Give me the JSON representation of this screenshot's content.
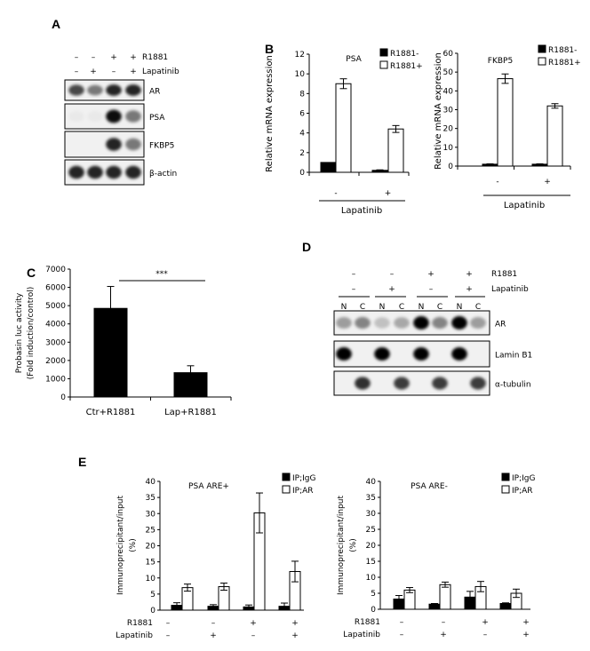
{
  "panels": {
    "a": "A",
    "b": "B",
    "c": "C",
    "d": "D",
    "e": "E"
  },
  "blot_a": {
    "treatments": [
      {
        "label": "R1881",
        "signs": [
          "–",
          "–",
          "+",
          "+"
        ]
      },
      {
        "label": "Lapatinib",
        "signs": [
          "–",
          "+",
          "–",
          "+"
        ]
      }
    ],
    "rows": [
      {
        "label": "AR",
        "band_intensity": [
          0.7,
          0.5,
          0.85,
          0.85
        ]
      },
      {
        "label": "PSA",
        "band_intensity": [
          0.03,
          0.03,
          0.95,
          0.5
        ]
      },
      {
        "label": "FKBP5",
        "band_intensity": [
          0,
          0,
          0.85,
          0.5
        ]
      },
      {
        "label": "β-actin",
        "band_intensity": [
          0.85,
          0.85,
          0.85,
          0.85
        ]
      }
    ]
  },
  "blot_d": {
    "treatments": [
      {
        "label": "R1881",
        "signs": [
          "–",
          "–",
          "+",
          "+"
        ]
      },
      {
        "label": "Lapatinib",
        "signs": [
          "–",
          "+",
          "–",
          "+"
        ]
      }
    ],
    "fractions": [
      "N",
      "C",
      "N",
      "C",
      "N",
      "C",
      "N",
      "C"
    ],
    "rows": [
      {
        "label": "AR",
        "band_intensity": [
          0.35,
          0.45,
          0.2,
          0.3,
          1,
          0.45,
          1,
          0.35
        ]
      },
      {
        "label": "Lamin B1",
        "band_intensity": [
          1,
          0,
          1,
          0,
          1,
          0,
          1,
          0
        ]
      },
      {
        "label": "α-tubulin",
        "band_intensity": [
          0,
          0.8,
          0,
          0.75,
          0,
          0.75,
          0,
          0.75
        ]
      }
    ]
  },
  "chart_data": [
    {
      "id": "b_psa",
      "type": "bar",
      "title": "PSA",
      "ylabel": "Relative mRNA expression",
      "xlabel": "Lapatinib",
      "categories": [
        "-",
        "+"
      ],
      "ylim": [
        0,
        12
      ],
      "yticks": [
        0,
        2,
        4,
        6,
        8,
        10,
        12
      ],
      "legend": "top-right",
      "series": [
        {
          "name": "R1881-",
          "color": "#000000",
          "values": [
            1.0,
            0.2
          ],
          "errors": [
            0,
            0.05
          ]
        },
        {
          "name": "R1881+",
          "color": "#ffffff",
          "values": [
            9.0,
            4.4
          ],
          "errors": [
            0.5,
            0.35
          ]
        }
      ]
    },
    {
      "id": "b_fkbp5",
      "type": "bar",
      "title": "FKBP5",
      "ylabel": "Relative mRNA expression",
      "xlabel": "Lapatinib",
      "categories": [
        "-",
        "+"
      ],
      "ylim": [
        0,
        60
      ],
      "yticks": [
        0,
        10,
        20,
        30,
        40,
        50,
        60
      ],
      "legend": "top-right",
      "series": [
        {
          "name": "R1881-",
          "color": "#000000",
          "values": [
            1.0,
            1.0
          ],
          "errors": [
            0.2,
            0.2
          ]
        },
        {
          "name": "R1881+",
          "color": "#ffffff",
          "values": [
            46.5,
            32.0
          ],
          "errors": [
            2.5,
            1.2
          ]
        }
      ]
    },
    {
      "id": "c_luc",
      "type": "bar",
      "ylabel": [
        "Probasin luc activity",
        "(Fold induction/control)"
      ],
      "categories": [
        "Ctr+R1881",
        "Lap+R1881"
      ],
      "ylim": [
        0,
        7000
      ],
      "yticks": [
        0,
        1000,
        2000,
        3000,
        4000,
        5000,
        6000,
        7000
      ],
      "series": [
        {
          "color": "#000000",
          "values": [
            4850,
            1330
          ],
          "errors": [
            1200,
            380
          ]
        }
      ],
      "annotation": "***"
    },
    {
      "id": "e_plus",
      "type": "bar",
      "title": "PSA ARE+",
      "ylabel": [
        "Immunoprecipitant/input",
        "(%)"
      ],
      "ylim": [
        0,
        40
      ],
      "yticks": [
        0,
        5,
        10,
        15,
        20,
        25,
        30,
        35,
        40
      ],
      "legend": "top-right",
      "conditions": [
        {
          "label": "R1881",
          "signs": [
            "–",
            "–",
            "+",
            "+"
          ]
        },
        {
          "label": "Lapatinib",
          "signs": [
            "–",
            "+",
            "–",
            "+"
          ]
        }
      ],
      "series": [
        {
          "name": "IP;IgG",
          "color": "#000000",
          "values": [
            1.5,
            1.2,
            1.0,
            1.2
          ],
          "errors": [
            0.8,
            0.5,
            0.6,
            1.0
          ]
        },
        {
          "name": "IP;AR",
          "color": "#ffffff",
          "values": [
            7.0,
            7.3,
            30.2,
            12.0
          ],
          "errors": [
            1.1,
            1.1,
            6.2,
            3.2
          ]
        }
      ]
    },
    {
      "id": "e_minus",
      "type": "bar",
      "title": "PSA ARE-",
      "ylabel": [
        "Immunoprecipitant/input",
        "(%)"
      ],
      "ylim": [
        0,
        40
      ],
      "yticks": [
        0,
        5,
        10,
        15,
        20,
        25,
        30,
        35,
        40
      ],
      "legend": "top-right",
      "conditions": [
        {
          "label": "R1881",
          "signs": [
            "–",
            "–",
            "+",
            "+"
          ]
        },
        {
          "label": "Lapatinib",
          "signs": [
            "–",
            "+",
            "–",
            "+"
          ]
        }
      ],
      "series": [
        {
          "name": "IP;IgG",
          "color": "#000000",
          "values": [
            3.2,
            1.6,
            3.8,
            1.8
          ],
          "errors": [
            1.1,
            0.2,
            1.8,
            0.2
          ]
        },
        {
          "name": "IP;AR",
          "color": "#ffffff",
          "values": [
            6.0,
            7.7,
            7.1,
            5.0
          ],
          "errors": [
            0.8,
            0.8,
            1.6,
            1.3
          ]
        }
      ]
    }
  ]
}
